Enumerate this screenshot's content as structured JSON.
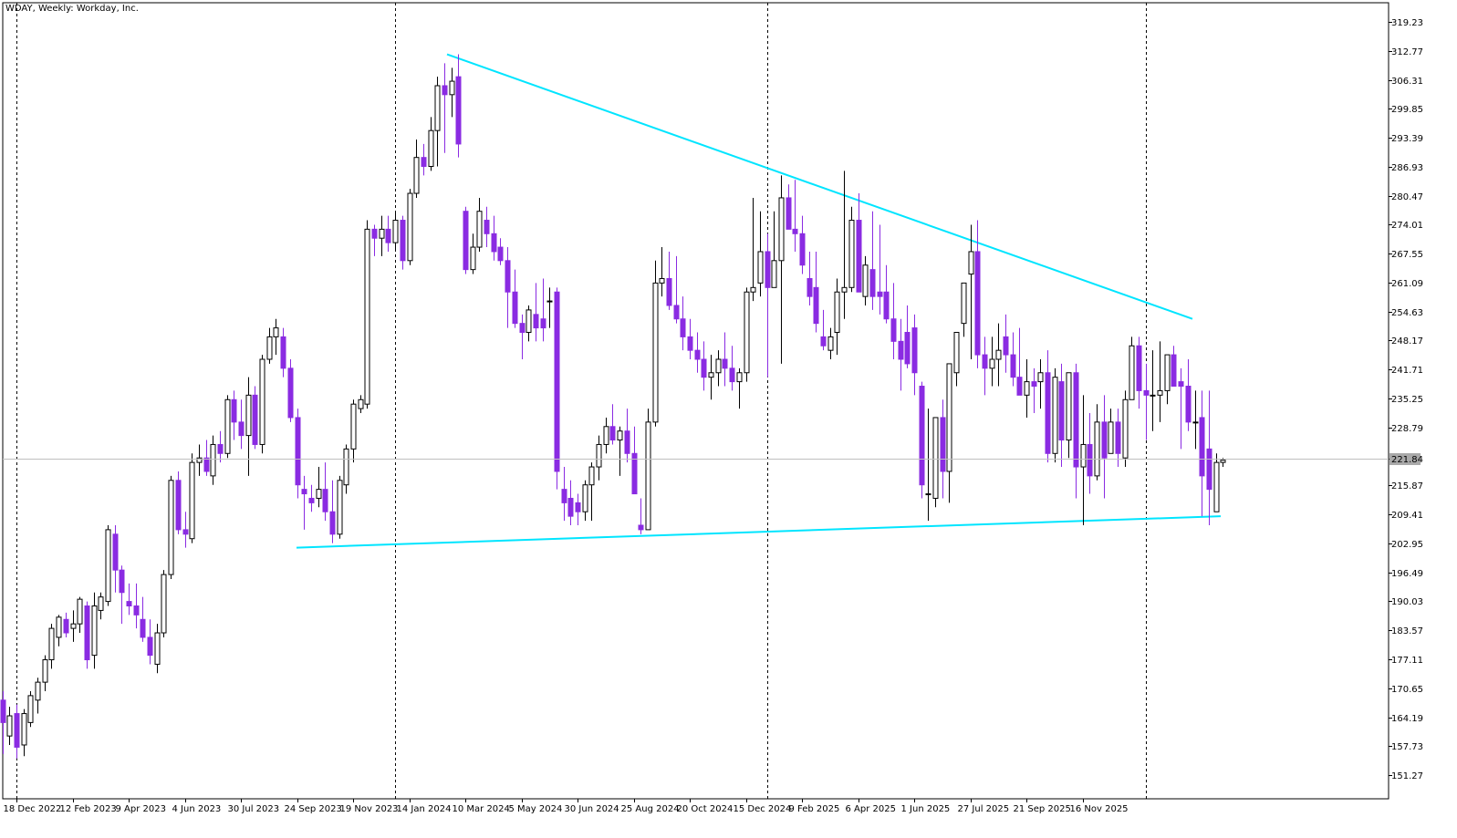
{
  "window": {
    "title": "WDAY, Weekly:  Workday, Inc."
  },
  "colors": {
    "background": "#ffffff",
    "bull_fill": "#ffffff",
    "bull_stroke": "#000000",
    "bear_fill": "#8a2be2",
    "trendline": "#00e5ff",
    "current_price_line": "#c0c0c0",
    "current_price_label_bg": "#a9a9a9"
  },
  "chart_data": {
    "type": "candlestick",
    "symbol": "WDAY",
    "timeframe": "Weekly",
    "title": "WDAY, Weekly:  Workday, Inc.",
    "ylim": [
      146.0,
      323.5
    ],
    "y_ticks": [
      "319.23",
      "312.77",
      "306.31",
      "299.85",
      "293.39",
      "286.93",
      "280.47",
      "274.01",
      "267.55",
      "261.09",
      "254.63",
      "248.17",
      "241.71",
      "235.25",
      "228.79",
      "221.84",
      "215.87",
      "209.41",
      "202.95",
      "196.49",
      "190.03",
      "183.57",
      "177.11",
      "170.65",
      "164.19",
      "157.73",
      "151.27"
    ],
    "current_price": "221.84",
    "x_labels": [
      "18 Dec 2022",
      "12 Feb 2023",
      "9 Apr 2023",
      "4 Jun 2023",
      "30 Jul 2023",
      "24 Sep 2023",
      "19 Nov 2023",
      "14 Jan 2024",
      "10 Mar 2024",
      "5 May 2024",
      "30 Jun 2024",
      "25 Aug 2024",
      "20 Oct 2024",
      "15 Dec 2024",
      "9 Feb 2025",
      "6 Apr 2025",
      "1 Jun 2025",
      "27 Jul 2025",
      "21 Sep 2025",
      "16 Nov 2025"
    ],
    "period_separators": [
      "18 Dec 2022",
      "14 Jan 2024",
      "15 Dec 2024",
      "28 Dec 2025"
    ],
    "trendlines": [
      {
        "from": [
          "Jan 2024",
          312.0
        ],
        "to": [
          "Feb 2026",
          253.0
        ]
      },
      {
        "from": [
          "Sep 2023",
          202.0
        ],
        "to": [
          "Mar 2026",
          209.0
        ]
      }
    ],
    "candles_ohlc": [
      [
        168.0,
        170.0,
        156.0,
        163.0
      ],
      [
        160.0,
        166.5,
        158.0,
        164.5
      ],
      [
        165.0,
        167.0,
        155.0,
        157.5
      ],
      [
        158.0,
        166.0,
        155.5,
        165.0
      ],
      [
        163.0,
        170.0,
        162.0,
        169.0
      ],
      [
        168.0,
        173.0,
        165.0,
        172.0
      ],
      [
        172.0,
        178.0,
        170.0,
        177.0
      ],
      [
        177.0,
        185.0,
        175.0,
        184.0
      ],
      [
        182.0,
        187.0,
        180.0,
        186.5
      ],
      [
        186.0,
        187.5,
        182.0,
        183.0
      ],
      [
        184.0,
        188.0,
        181.0,
        185.0
      ],
      [
        185.0,
        191.0,
        183.0,
        190.5
      ],
      [
        189.0,
        190.0,
        175.0,
        177.0
      ],
      [
        178.0,
        192.0,
        175.0,
        189.0
      ],
      [
        188.0,
        192.0,
        186.0,
        191.0
      ],
      [
        190.0,
        207.0,
        189.0,
        206.0
      ],
      [
        205.0,
        207.0,
        192.0,
        197.0
      ],
      [
        197.0,
        198.0,
        185.0,
        192.0
      ],
      [
        190.0,
        194.0,
        187.0,
        189.0
      ],
      [
        189.0,
        194.0,
        184.0,
        187.0
      ],
      [
        186.0,
        191.0,
        181.0,
        182.0
      ],
      [
        182.0,
        186.0,
        176.0,
        178.0
      ],
      [
        176.0,
        185.0,
        174.0,
        183.0
      ],
      [
        183.0,
        197.0,
        182.0,
        196.0
      ],
      [
        196.0,
        218.0,
        195.0,
        217.0
      ],
      [
        217.0,
        219.0,
        205.0,
        206.0
      ],
      [
        206.0,
        210.0,
        202.0,
        205.0
      ],
      [
        204.0,
        223.0,
        203.0,
        221.0
      ],
      [
        221.0,
        225.0,
        218.0,
        222.0
      ],
      [
        222.0,
        226.0,
        218.0,
        219.0
      ],
      [
        218.0,
        227.0,
        216.0,
        225.0
      ],
      [
        225.0,
        228.0,
        221.0,
        223.0
      ],
      [
        223.0,
        236.0,
        222.0,
        235.0
      ],
      [
        235.0,
        237.0,
        226.0,
        230.0
      ],
      [
        230.0,
        235.0,
        224.0,
        227.0
      ],
      [
        227.0,
        240.0,
        218.0,
        236.0
      ],
      [
        236.0,
        238.0,
        224.0,
        225.0
      ],
      [
        225.0,
        245.0,
        223.0,
        244.0
      ],
      [
        244.0,
        251.0,
        243.0,
        249.0
      ],
      [
        249.0,
        253.0,
        245.0,
        251.0
      ],
      [
        249.0,
        251.0,
        240.0,
        242.0
      ],
      [
        242.0,
        244.0,
        230.0,
        231.0
      ],
      [
        231.0,
        233.0,
        213.0,
        216.0
      ],
      [
        215.0,
        218.0,
        206.0,
        214.0
      ],
      [
        213.0,
        216.0,
        210.0,
        212.0
      ],
      [
        213.0,
        220.0,
        211.0,
        215.0
      ],
      [
        215.0,
        221.0,
        208.0,
        210.0
      ],
      [
        210.0,
        217.0,
        203.0,
        205.0
      ],
      [
        205.0,
        218.0,
        204.0,
        217.0
      ],
      [
        216.0,
        225.0,
        214.0,
        224.0
      ],
      [
        224.0,
        235.0,
        221.0,
        234.0
      ],
      [
        233.0,
        236.0,
        232.0,
        235.0
      ],
      [
        234.0,
        275.0,
        233.0,
        273.0
      ],
      [
        273.0,
        274.0,
        267.0,
        271.0
      ],
      [
        271.0,
        276.0,
        267.0,
        273.0
      ],
      [
        273.0,
        276.0,
        268.0,
        270.0
      ],
      [
        270.0,
        277.0,
        268.0,
        275.0
      ],
      [
        275.0,
        276.0,
        264.0,
        266.0
      ],
      [
        266.0,
        282.0,
        265.0,
        281.0
      ],
      [
        281.0,
        293.0,
        280.0,
        289.0
      ],
      [
        289.0,
        292.0,
        285.0,
        287.0
      ],
      [
        287.0,
        298.0,
        286.0,
        295.0
      ],
      [
        295.0,
        307.0,
        287.0,
        305.0
      ],
      [
        305.0,
        310.0,
        290.0,
        303.0
      ],
      [
        303.0,
        309.0,
        298.0,
        306.0
      ],
      [
        307.0,
        312.0,
        289.0,
        292.0
      ],
      [
        277.0,
        278.0,
        263.0,
        264.0
      ],
      [
        264.0,
        272.0,
        263.0,
        269.0
      ],
      [
        269.0,
        280.0,
        268.0,
        277.0
      ],
      [
        275.0,
        278.0,
        269.0,
        272.0
      ],
      [
        272.0,
        276.0,
        266.0,
        268.0
      ],
      [
        269.0,
        271.0,
        265.0,
        266.0
      ],
      [
        266.0,
        269.0,
        251.0,
        259.0
      ],
      [
        259.0,
        264.0,
        251.0,
        252.0
      ],
      [
        252.0,
        254.0,
        244.0,
        250.0
      ],
      [
        250.0,
        256.0,
        248.0,
        255.0
      ],
      [
        254.0,
        261.0,
        248.0,
        251.0
      ],
      [
        253.0,
        262.0,
        248.0,
        251.0
      ],
      [
        257.0,
        260.0,
        251.0,
        257.0
      ],
      [
        259.0,
        260.0,
        215.0,
        219.0
      ],
      [
        215.0,
        220.0,
        208.0,
        212.0
      ],
      [
        213.0,
        217.0,
        207.0,
        209.0
      ],
      [
        212.0,
        214.0,
        207.0,
        210.0
      ],
      [
        210.0,
        217.0,
        208.0,
        216.0
      ],
      [
        216.0,
        221.0,
        208.0,
        220.0
      ],
      [
        220.0,
        227.0,
        217.0,
        225.0
      ],
      [
        225.0,
        231.0,
        223.0,
        229.0
      ],
      [
        229.0,
        234.0,
        225.0,
        226.0
      ],
      [
        226.0,
        229.0,
        218.0,
        228.0
      ],
      [
        228.0,
        233.0,
        221.0,
        223.0
      ],
      [
        223.0,
        229.0,
        214.0,
        214.0
      ],
      [
        207.0,
        213.0,
        205.0,
        206.0
      ],
      [
        206.0,
        233.0,
        206.0,
        230.0
      ],
      [
        230.0,
        266.0,
        229.0,
        261.0
      ],
      [
        261.0,
        269.0,
        258.0,
        262.0
      ],
      [
        262.0,
        268.0,
        255.0,
        256.0
      ],
      [
        256.0,
        267.0,
        252.0,
        253.0
      ],
      [
        253.0,
        258.0,
        246.0,
        249.0
      ],
      [
        249.0,
        253.0,
        244.0,
        246.0
      ],
      [
        246.0,
        250.0,
        241.0,
        244.0
      ],
      [
        244.0,
        248.0,
        237.0,
        240.0
      ],
      [
        240.0,
        245.0,
        235.0,
        241.0
      ],
      [
        241.0,
        246.0,
        238.0,
        244.0
      ],
      [
        244.0,
        250.0,
        238.0,
        242.0
      ],
      [
        242.0,
        247.0,
        237.0,
        239.0
      ],
      [
        239.0,
        242.0,
        233.0,
        241.0
      ],
      [
        241.0,
        260.0,
        239.0,
        259.0
      ],
      [
        259.0,
        280.0,
        257.0,
        260.0
      ],
      [
        261.0,
        277.0,
        258.0,
        268.0
      ],
      [
        268.0,
        272.0,
        240.0,
        260.0
      ],
      [
        260.0,
        277.0,
        260.0,
        266.0
      ],
      [
        266.0,
        285.0,
        243.0,
        280.0
      ],
      [
        280.0,
        283.0,
        273.0,
        273.0
      ],
      [
        273.0,
        284.0,
        268.0,
        272.0
      ],
      [
        272.0,
        276.0,
        263.0,
        265.0
      ],
      [
        262.0,
        268.0,
        256.0,
        258.0
      ],
      [
        260.0,
        268.0,
        250.0,
        252.0
      ],
      [
        249.0,
        255.0,
        246.0,
        247.0
      ],
      [
        246.0,
        251.0,
        244.0,
        249.0
      ],
      [
        250.0,
        262.0,
        245.0,
        259.0
      ],
      [
        259.0,
        286.0,
        253.0,
        260.0
      ],
      [
        260.0,
        278.0,
        259.0,
        275.0
      ],
      [
        275.0,
        281.0,
        260.0,
        259.0
      ],
      [
        258.0,
        267.0,
        256.0,
        265.0
      ],
      [
        264.0,
        277.0,
        255.0,
        258.0
      ],
      [
        259.0,
        274.0,
        254.0,
        258.0
      ],
      [
        259.0,
        265.0,
        252.0,
        253.0
      ],
      [
        253.0,
        261.0,
        244.0,
        248.0
      ],
      [
        248.0,
        253.0,
        237.0,
        244.0
      ],
      [
        250.0,
        256.0,
        242.0,
        243.0
      ],
      [
        251.0,
        254.0,
        236.0,
        241.0
      ],
      [
        238.0,
        239.0,
        213.0,
        216.0
      ],
      [
        214.0,
        233.0,
        208.0,
        214.0
      ],
      [
        213.0,
        231.0,
        211.0,
        231.0
      ],
      [
        231.0,
        235.0,
        213.0,
        219.0
      ],
      [
        219.0,
        240.0,
        212.0,
        243.0
      ],
      [
        241.0,
        249.0,
        238.0,
        250.0
      ],
      [
        252.0,
        261.0,
        249.0,
        261.0
      ],
      [
        263.0,
        274.0,
        244.0,
        268.0
      ],
      [
        268.0,
        275.0,
        242.0,
        245.0
      ],
      [
        245.0,
        249.0,
        236.0,
        242.0
      ],
      [
        242.0,
        249.0,
        238.0,
        244.0
      ],
      [
        244.0,
        252.0,
        238.0,
        246.0
      ],
      [
        249.0,
        254.0,
        241.0,
        245.0
      ],
      [
        245.0,
        250.0,
        238.0,
        240.0
      ],
      [
        240.0,
        251.0,
        238.0,
        236.0
      ],
      [
        236.0,
        244.0,
        231.0,
        239.0
      ],
      [
        239.0,
        242.0,
        232.0,
        238.0
      ],
      [
        239.0,
        244.0,
        233.0,
        241.0
      ],
      [
        241.0,
        246.0,
        221.0,
        223.0
      ],
      [
        223.0,
        242.0,
        221.0,
        240.0
      ],
      [
        239.0,
        243.0,
        220.0,
        226.0
      ],
      [
        226.0,
        240.0,
        222.0,
        241.0
      ],
      [
        241.0,
        243.0,
        213.0,
        220.0
      ],
      [
        220.0,
        236.0,
        207.0,
        225.0
      ],
      [
        225.0,
        232.0,
        214.0,
        218.0
      ],
      [
        218.0,
        234.0,
        217.0,
        230.0
      ],
      [
        230.0,
        236.0,
        213.0,
        222.0
      ],
      [
        223.0,
        233.0,
        223.0,
        230.0
      ],
      [
        230.0,
        233.0,
        220.0,
        223.0
      ],
      [
        222.0,
        237.0,
        220.0,
        235.0
      ],
      [
        235.0,
        249.0,
        235.0,
        247.0
      ],
      [
        247.0,
        249.0,
        233.0,
        237.0
      ],
      [
        237.0,
        243.0,
        226.0,
        236.0
      ],
      [
        236.0,
        246.0,
        228.0,
        236.0
      ],
      [
        236.0,
        248.0,
        230.0,
        237.0
      ],
      [
        237.0,
        244.0,
        234.0,
        245.0
      ],
      [
        245.0,
        247.0,
        238.0,
        238.0
      ],
      [
        239.0,
        242.0,
        224.0,
        238.0
      ],
      [
        238.0,
        244.0,
        228.0,
        230.0
      ],
      [
        230.0,
        237.0,
        224.0,
        230.0
      ],
      [
        231.0,
        237.0,
        209.0,
        218.0
      ],
      [
        224.0,
        237.0,
        207.0,
        215.0
      ],
      [
        210.0,
        223.0,
        210.0,
        221.0
      ],
      [
        221.0,
        222.0,
        220.0,
        221.5
      ]
    ]
  }
}
